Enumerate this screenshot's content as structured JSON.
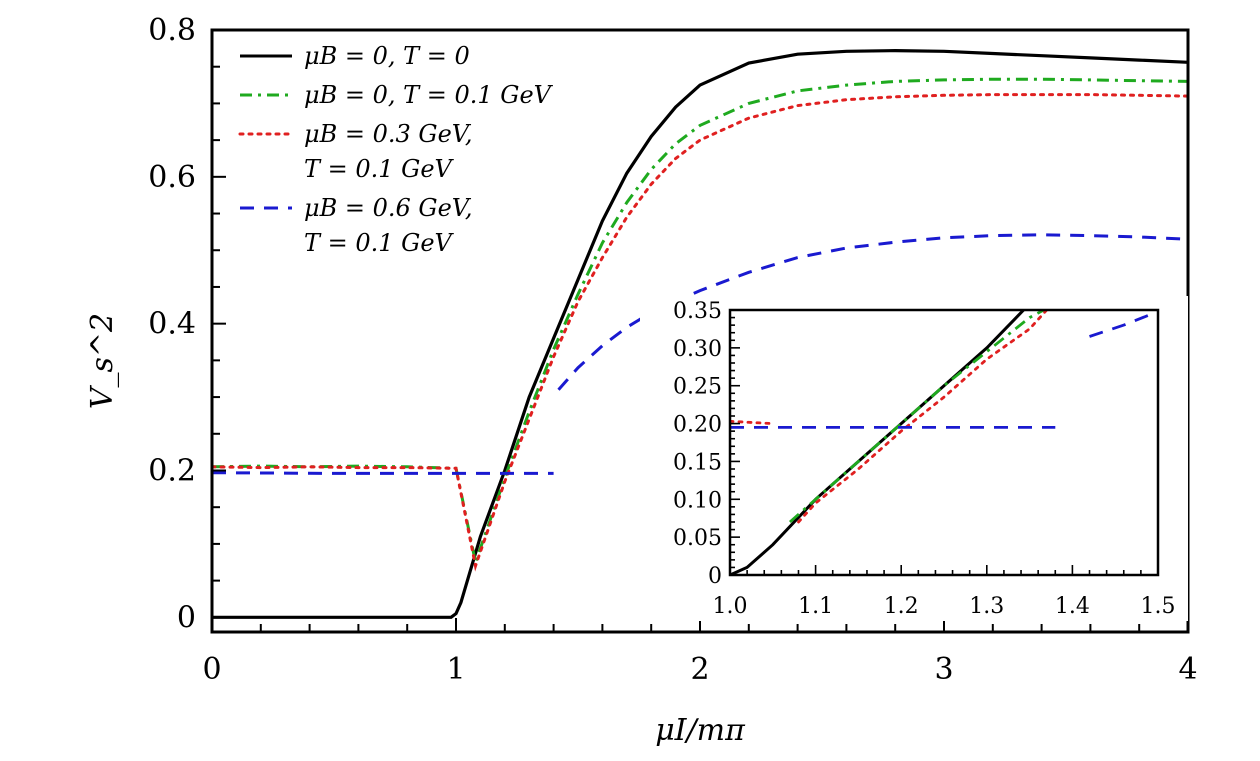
{
  "chart_data": [
    {
      "id": "main",
      "type": "line",
      "title": "",
      "xlabel": "μI/mπ",
      "ylabel": "V_s^2",
      "xlim": [
        0,
        4
      ],
      "ylim": [
        -0.02,
        0.8
      ],
      "xticks": [
        0,
        1,
        2,
        3,
        4
      ],
      "xtick_labels": [
        "0",
        "1",
        "2",
        "3",
        "4"
      ],
      "yticks": [
        0,
        0.2,
        0.4,
        0.6,
        0.8
      ],
      "ytick_labels": [
        "0",
        "0.2",
        "0.4",
        "0.6",
        "0.8"
      ],
      "grid": false,
      "legend_position": "top-left",
      "series": [
        {
          "name": "μB = 0, T = 0",
          "color": "#000000",
          "style": "solid",
          "x": [
            0,
            0.98,
            1.0,
            1.02,
            1.1,
            1.2,
            1.3,
            1.4,
            1.5,
            1.6,
            1.7,
            1.8,
            1.9,
            2.0,
            2.2,
            2.4,
            2.6,
            2.8,
            3.0,
            3.2,
            3.4,
            3.6,
            3.8,
            4.0
          ],
          "y": [
            0,
            0,
            0.005,
            0.02,
            0.11,
            0.2,
            0.3,
            0.38,
            0.46,
            0.54,
            0.605,
            0.655,
            0.695,
            0.725,
            0.755,
            0.767,
            0.771,
            0.772,
            0.771,
            0.768,
            0.765,
            0.762,
            0.759,
            0.756
          ]
        },
        {
          "name": "μB = 0, T = 0.1 GeV",
          "color": "#1faa1f",
          "style": "dash-dot",
          "x": [
            0,
            0.2,
            0.4,
            0.6,
            0.8,
            1.0,
            1.08,
            1.2,
            1.3,
            1.4,
            1.5,
            1.6,
            1.7,
            1.8,
            1.9,
            2.0,
            2.2,
            2.4,
            2.6,
            2.8,
            3.0,
            3.2,
            3.4,
            3.6,
            3.8,
            4.0
          ],
          "y": [
            0.205,
            0.206,
            0.205,
            0.206,
            0.205,
            0.203,
            0.075,
            0.19,
            0.28,
            0.365,
            0.44,
            0.51,
            0.565,
            0.61,
            0.645,
            0.67,
            0.7,
            0.717,
            0.725,
            0.73,
            0.732,
            0.733,
            0.733,
            0.732,
            0.731,
            0.73
          ]
        },
        {
          "name": "μB = 0.3 GeV, T = 0.1 GeV",
          "color": "#e02020",
          "style": "dotted",
          "x": [
            0,
            0.2,
            0.4,
            0.6,
            0.8,
            1.0,
            1.08,
            1.2,
            1.3,
            1.4,
            1.5,
            1.6,
            1.7,
            1.8,
            1.9,
            2.0,
            2.2,
            2.4,
            2.6,
            2.8,
            3.0,
            3.2,
            3.4,
            3.6,
            3.8,
            4.0
          ],
          "y": [
            0.205,
            0.204,
            0.205,
            0.204,
            0.204,
            0.203,
            0.07,
            0.185,
            0.27,
            0.355,
            0.43,
            0.49,
            0.545,
            0.59,
            0.625,
            0.65,
            0.68,
            0.697,
            0.705,
            0.709,
            0.711,
            0.712,
            0.712,
            0.712,
            0.711,
            0.71
          ]
        },
        {
          "name": "μB = 0.6 GeV, T = 0.1 GeV",
          "color": "#1a1ad0",
          "style": "dashed",
          "segments": [
            {
              "x": [
                0,
                0.5,
                1.0,
                1.4
              ],
              "y": [
                0.197,
                0.196,
                0.196,
                0.196
              ]
            },
            {
              "x": [
                1.42,
                1.5,
                1.6,
                1.7,
                1.8,
                1.9,
                2.0,
                2.2,
                2.4,
                2.6,
                2.8,
                3.0,
                3.2,
                3.4,
                3.6,
                3.8,
                4.0
              ],
              "y": [
                0.31,
                0.34,
                0.37,
                0.395,
                0.415,
                0.43,
                0.445,
                0.47,
                0.49,
                0.503,
                0.511,
                0.517,
                0.52,
                0.521,
                0.52,
                0.518,
                0.515
              ]
            }
          ]
        }
      ]
    },
    {
      "id": "inset",
      "type": "line",
      "title": "",
      "xlabel": "",
      "ylabel": "",
      "xlim": [
        1.0,
        1.5
      ],
      "ylim": [
        0,
        0.35
      ],
      "xticks": [
        1.0,
        1.1,
        1.2,
        1.3,
        1.4,
        1.5
      ],
      "xtick_labels": [
        "1.0",
        "1.1",
        "1.2",
        "1.3",
        "1.4",
        "1.5"
      ],
      "yticks": [
        0,
        0.05,
        0.1,
        0.15,
        0.2,
        0.25,
        0.3,
        0.35
      ],
      "ytick_labels": [
        "0",
        "0.05",
        "0.10",
        "0.15",
        "0.20",
        "0.25",
        "0.30",
        "0.35"
      ],
      "grid": false,
      "series": [
        {
          "name": "μB = 0, T = 0",
          "color": "#000000",
          "style": "solid",
          "x": [
            1.0,
            1.02,
            1.05,
            1.1,
            1.2,
            1.3,
            1.343
          ],
          "y": [
            0.0,
            0.01,
            0.04,
            0.1,
            0.2,
            0.3,
            0.35
          ]
        },
        {
          "name": "μB = 0, T = 0.1 GeV",
          "color": "#1faa1f",
          "style": "dash-dot",
          "x": [
            1.07,
            1.1,
            1.15,
            1.2,
            1.25,
            1.3,
            1.35,
            1.37
          ],
          "y": [
            0.07,
            0.1,
            0.15,
            0.2,
            0.25,
            0.295,
            0.34,
            0.352
          ]
        },
        {
          "name": "μB = 0.3 GeV, T = 0.1 GeV",
          "color": "#e02020",
          "style": "dotted",
          "segments": [
            {
              "x": [
                1.0,
                1.05
              ],
              "y": [
                0.203,
                0.2
              ]
            },
            {
              "x": [
                1.08,
                1.1,
                1.15,
                1.2,
                1.25,
                1.3,
                1.35,
                1.37
              ],
              "y": [
                0.07,
                0.095,
                0.14,
                0.19,
                0.235,
                0.285,
                0.325,
                0.35
              ]
            }
          ]
        },
        {
          "name": "μB = 0.6 GeV, T = 0.1 GeV",
          "color": "#1a1ad0",
          "style": "dashed",
          "segments": [
            {
              "x": [
                1.0,
                1.1,
                1.2,
                1.3,
                1.38
              ],
              "y": [
                0.195,
                0.195,
                0.195,
                0.195,
                0.195
              ]
            },
            {
              "x": [
                1.42,
                1.46,
                1.5
              ],
              "y": [
                0.315,
                0.33,
                0.348
              ]
            }
          ]
        }
      ]
    }
  ],
  "legend": {
    "items": [
      {
        "lines": [
          "μB = 0, T = 0"
        ],
        "color": "#000000",
        "style": "solid"
      },
      {
        "lines": [
          "μB = 0, T = 0.1 GeV"
        ],
        "color": "#1faa1f",
        "style": "dash-dot"
      },
      {
        "lines": [
          "μB = 0.3 GeV,",
          "T = 0.1 GeV"
        ],
        "color": "#e02020",
        "style": "dotted"
      },
      {
        "lines": [
          "μB = 0.6 GeV,",
          "T = 0.1 GeV"
        ],
        "color": "#1a1ad0",
        "style": "dashed"
      }
    ]
  }
}
